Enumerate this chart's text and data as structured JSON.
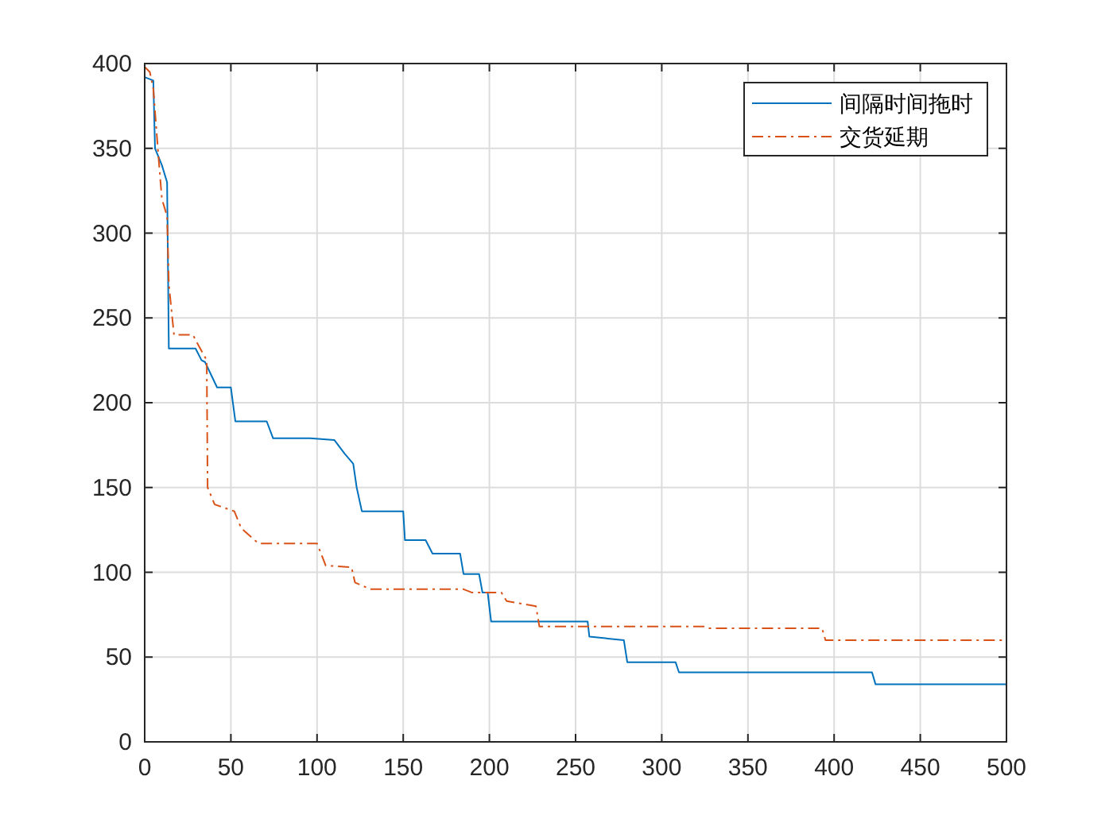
{
  "chart_data": {
    "type": "line",
    "xlim": [
      0,
      500
    ],
    "ylim": [
      0,
      400
    ],
    "xticks": [
      0,
      50,
      100,
      150,
      200,
      250,
      300,
      350,
      400,
      450,
      500
    ],
    "yticks": [
      0,
      50,
      100,
      150,
      200,
      250,
      300,
      350,
      400
    ],
    "grid": true,
    "legend": "top right",
    "marker": "none",
    "series": [
      {
        "name": "间隔时间拖时",
        "color": "#0072bd",
        "line_style": "solid",
        "x": [
          0,
          5,
          6,
          8,
          10,
          13,
          14,
          29.5,
          33,
          35,
          42,
          50,
          52.6,
          70.8,
          74.5,
          96,
          110,
          116,
          121,
          123,
          126,
          150,
          151,
          163,
          167,
          183,
          185,
          194,
          196,
          199,
          201,
          257,
          258,
          278,
          280,
          308,
          310,
          422,
          424,
          500
        ],
        "values": [
          392,
          390,
          350,
          345,
          340,
          330,
          232,
          232,
          225,
          224,
          209,
          209,
          189,
          189,
          179,
          179,
          178,
          170,
          164,
          150,
          136,
          136,
          119,
          119,
          111,
          111,
          99,
          99,
          88,
          88,
          71,
          71,
          62,
          60,
          47,
          47,
          41,
          41,
          34,
          34
        ]
      },
      {
        "name": "交货延期",
        "color": "#d95319",
        "line_style": "dashed",
        "x": [
          0,
          3,
          5,
          8,
          10,
          13,
          14,
          17,
          28,
          30,
          36,
          36.5,
          40.6,
          52,
          56,
          66,
          100,
          105,
          120,
          122,
          131,
          185,
          190,
          207,
          210,
          227,
          229,
          325,
          327,
          393,
          395,
          500
        ],
        "values": [
          398,
          395,
          385,
          345,
          320,
          310,
          270,
          240,
          240,
          236,
          225,
          150,
          140,
          136,
          126,
          117,
          117,
          104,
          103,
          94,
          90,
          90,
          88,
          88,
          83,
          80,
          68,
          68,
          67,
          67,
          60,
          60
        ]
      }
    ]
  }
}
